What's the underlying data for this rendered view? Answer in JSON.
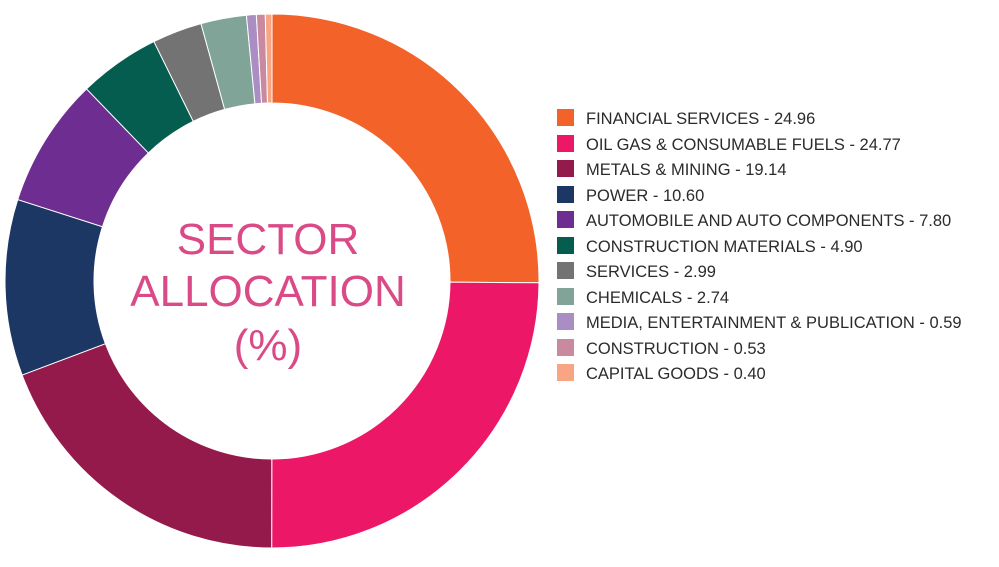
{
  "chart_data": {
    "type": "pie",
    "donut": true,
    "title_lines": [
      "SECTOR",
      "ALLOCATION",
      "(%)"
    ],
    "legend_position": "right",
    "slices": [
      {
        "label": "FINANCIAL SERVICES - 24.96",
        "value": 24.96,
        "color": "#f26229"
      },
      {
        "label": "OIL GAS & CONSUMABLE FUELS - 24.77",
        "value": 24.77,
        "color": "#ec1766"
      },
      {
        "label": "METALS & MINING - 19.14",
        "value": 19.14,
        "color": "#941a4b"
      },
      {
        "label": "POWER - 10.60",
        "value": 10.6,
        "color": "#1d3764"
      },
      {
        "label": "AUTOMOBILE AND AUTO COMPONENTS - 7.80",
        "value": 7.8,
        "color": "#6e2d91"
      },
      {
        "label": "CONSTRUCTION MATERIALS - 4.90",
        "value": 4.9,
        "color": "#045d4e"
      },
      {
        "label": "SERVICES - 2.99",
        "value": 2.99,
        "color": "#737373"
      },
      {
        "label": "CHEMICALS - 2.74",
        "value": 2.74,
        "color": "#80a497"
      },
      {
        "label": "MEDIA, ENTERTAINMENT & PUBLICATION - 0.59",
        "value": 0.59,
        "color": "#aa8ec3"
      },
      {
        "label": "CONSTRUCTION - 0.53",
        "value": 0.53,
        "color": "#c98a9f"
      },
      {
        "label": "CAPITAL GOODS - 0.40",
        "value": 0.4,
        "color": "#f8a584"
      }
    ]
  }
}
